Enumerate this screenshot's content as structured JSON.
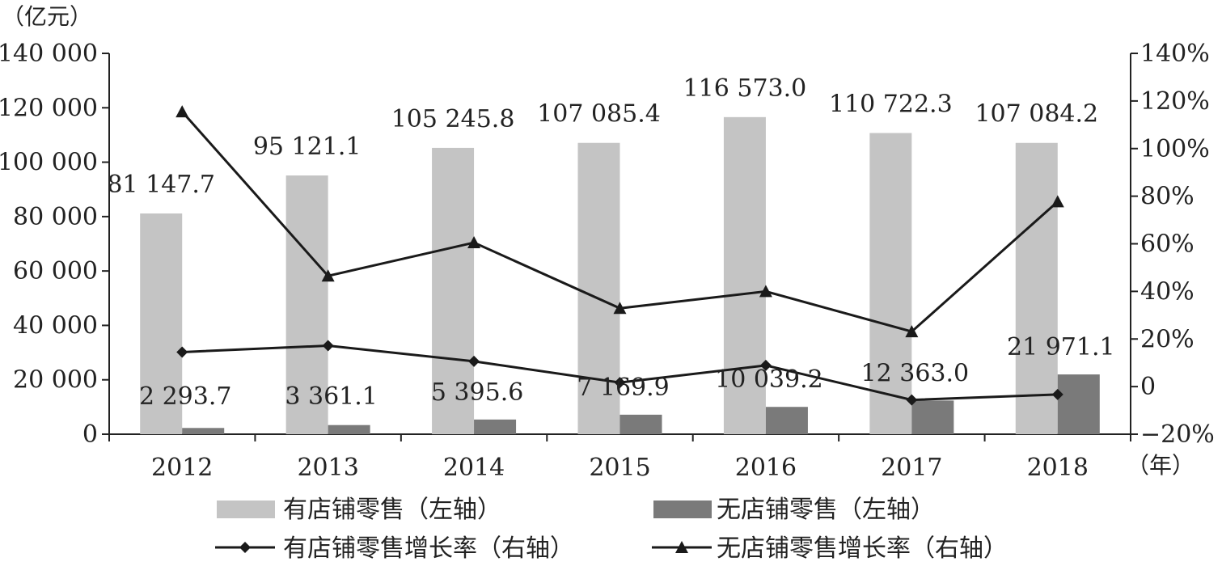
{
  "chart_data": {
    "type": "bar",
    "categories": [
      "2012",
      "2013",
      "2014",
      "2015",
      "2016",
      "2017",
      "2018"
    ],
    "left_unit": "（亿元）",
    "x_unit": "（年）",
    "left_axis": {
      "ylim": [
        0,
        140000
      ],
      "tick_values": [
        0,
        20000,
        40000,
        60000,
        80000,
        100000,
        120000,
        140000
      ],
      "tick_labels": [
        "0",
        "20 000",
        "40 000",
        "60 000",
        "80 000",
        "100 000",
        "120 000",
        "140 000"
      ]
    },
    "right_axis": {
      "ylim": [
        -20,
        140
      ],
      "tick_values": [
        -20,
        0,
        20,
        40,
        60,
        80,
        100,
        120,
        140
      ],
      "tick_labels": [
        "−20%",
        "0",
        "20%",
        "40%",
        "60%",
        "80%",
        "100%",
        "120%",
        "140%"
      ]
    },
    "bar_series": [
      {
        "name": "有店铺零售（左轴）",
        "color": "#c4c4c4",
        "values": [
          81147.7,
          95121.1,
          105245.8,
          107085.4,
          116573.0,
          110722.3,
          107084.2
        ],
        "labels": [
          "81 147.7",
          "95 121.1",
          "105 245.8",
          "107 085.4",
          "116 573.0",
          "110 722.3",
          "107 084.2"
        ]
      },
      {
        "name": "无店铺零售（左轴）",
        "color": "#7a7a7a",
        "values": [
          2293.7,
          3361.1,
          5395.6,
          7169.9,
          10039.2,
          12363.0,
          21971.1
        ],
        "labels": [
          "2 293.7",
          "3 361.1",
          "5 395.6",
          "7 169.9",
          "10 039.2",
          "12 363.0",
          "21 971.1"
        ]
      }
    ],
    "line_series": [
      {
        "name": "有店铺零售增长率（右轴）",
        "marker": "diamond",
        "color": "#1a1a1a",
        "values": [
          14.5,
          17.2,
          10.6,
          1.7,
          8.9,
          -5.6,
          -3.3
        ]
      },
      {
        "name": "无店铺零售增长率（右轴）",
        "marker": "triangle",
        "color": "#1a1a1a",
        "values": [
          115.5,
          46.5,
          60.5,
          32.9,
          40.0,
          23.1,
          77.7
        ]
      }
    ]
  }
}
